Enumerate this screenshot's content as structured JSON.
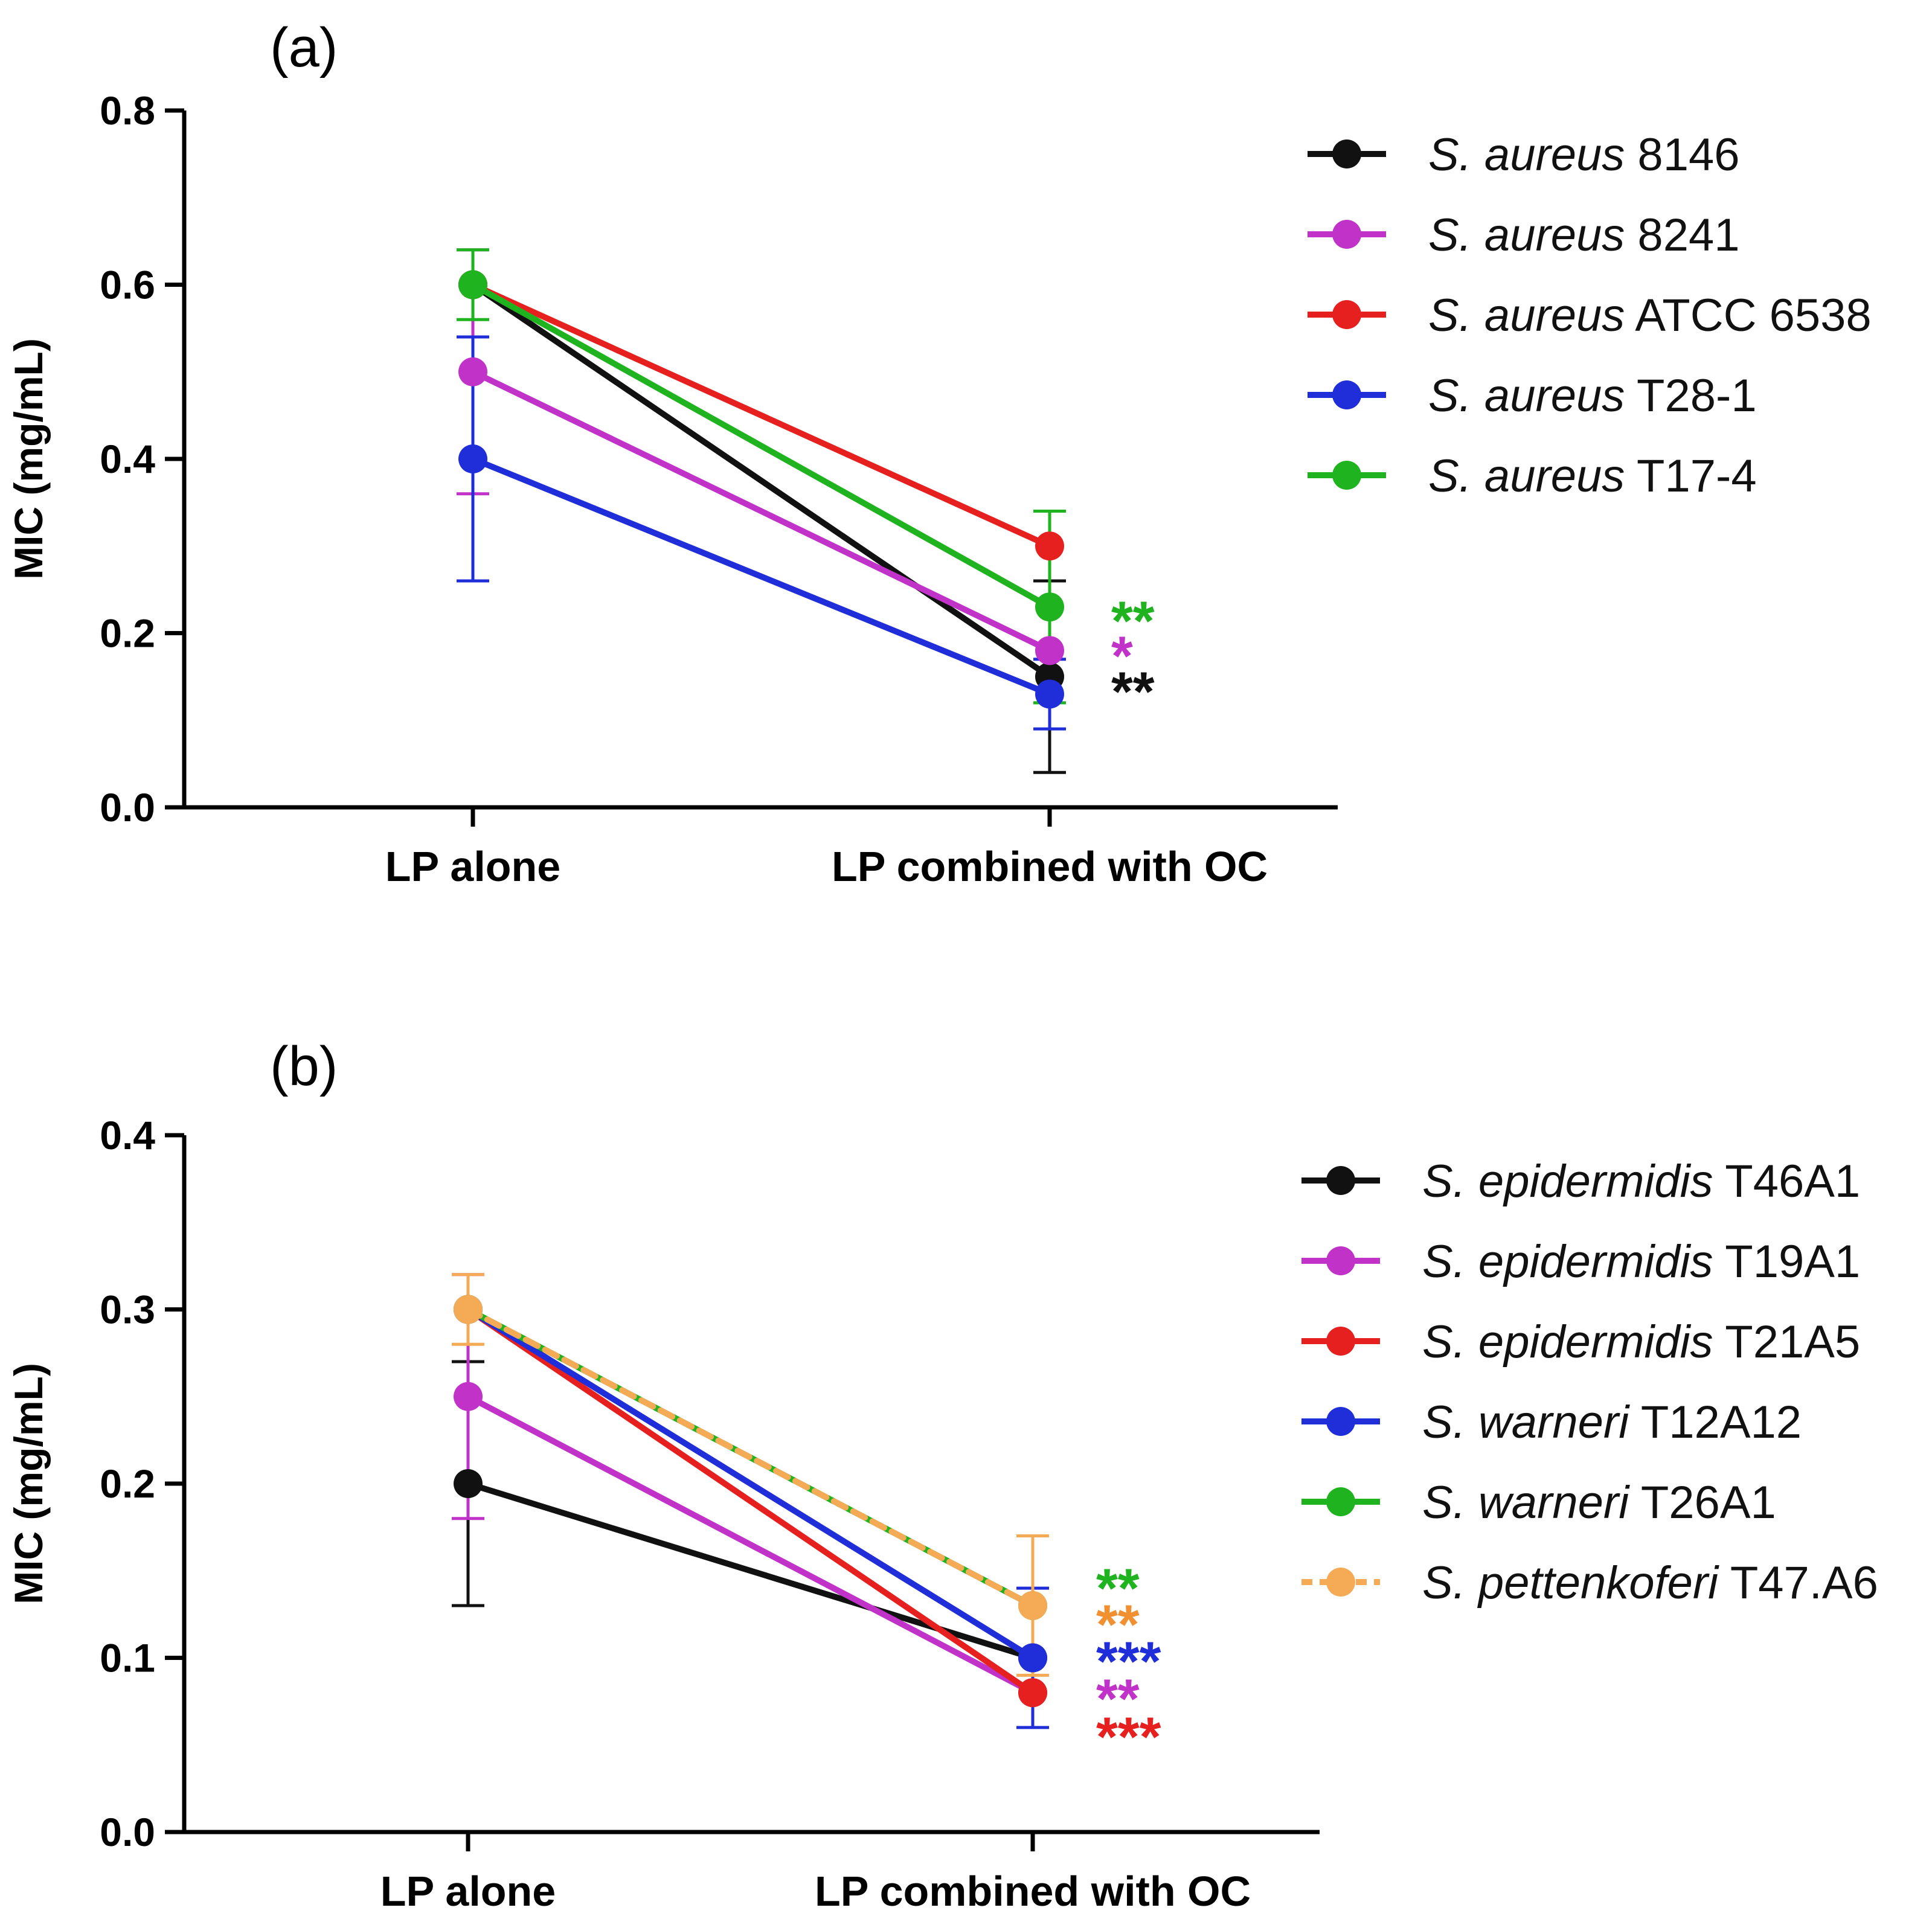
{
  "chart_data": [
    {
      "type": "line",
      "panel_label": "(a)",
      "title": "",
      "xlabel": "",
      "ylabel": "MIC (mg/mL)",
      "categories": [
        "LP alone",
        "LP combined with OC"
      ],
      "ylim": [
        0,
        0.8
      ],
      "yticks": [
        0.0,
        0.2,
        0.4,
        0.6,
        0.8
      ],
      "ytick_labels": [
        "0.0",
        "0.2",
        "0.4",
        "0.6",
        "0.8"
      ],
      "grid": false,
      "legend_position": "right",
      "series": [
        {
          "species": "S. aureus",
          "strain": "8146",
          "color": "#111111",
          "dashed": false,
          "values": [
            0.6,
            0.15
          ],
          "errors": [
            null,
            0.11
          ]
        },
        {
          "species": "S. aureus",
          "strain": "8241",
          "color": "#c032c8",
          "dashed": false,
          "values": [
            0.5,
            0.18
          ],
          "errors": [
            0.14,
            null
          ]
        },
        {
          "species": "S. aureus",
          "strain": "ATCC 6538",
          "color": "#e6201f",
          "dashed": false,
          "values": [
            0.6,
            0.3
          ],
          "errors": [
            null,
            null
          ]
        },
        {
          "species": "S. aureus",
          "strain": "T28-1",
          "color": "#1f2ed8",
          "dashed": false,
          "values": [
            0.4,
            0.13
          ],
          "errors": [
            0.14,
            0.04
          ]
        },
        {
          "species": "S. aureus",
          "strain": "T17-4",
          "color": "#1fb41f",
          "dashed": false,
          "values": [
            0.6,
            0.23
          ],
          "errors": [
            0.04,
            0.11
          ]
        }
      ],
      "significance": [
        {
          "series": "T17-4",
          "text": "**",
          "color": "#1fb41f"
        },
        {
          "series": "8241",
          "text": "*",
          "color": "#c032c8"
        },
        {
          "series": "8146",
          "text": "**",
          "color": "#111111"
        }
      ]
    },
    {
      "type": "line",
      "panel_label": "(b)",
      "title": "",
      "xlabel": "",
      "ylabel": "MIC (mg/mL)",
      "categories": [
        "LP alone",
        "LP combined with OC"
      ],
      "ylim": [
        0,
        0.4
      ],
      "yticks": [
        0.0,
        0.1,
        0.2,
        0.3,
        0.4
      ],
      "ytick_labels": [
        "0.0",
        "0.1",
        "0.2",
        "0.3",
        "0.4"
      ],
      "grid": false,
      "legend_position": "right",
      "series": [
        {
          "species": "S. epidermidis",
          "strain": "T46A1",
          "color": "#111111",
          "dashed": false,
          "values": [
            0.2,
            0.1
          ],
          "errors": [
            0.07,
            null
          ]
        },
        {
          "species": "S. epidermidis",
          "strain": "T19A1",
          "color": "#c032c8",
          "dashed": false,
          "values": [
            0.25,
            0.08
          ],
          "errors": [
            0.07,
            null
          ]
        },
        {
          "species": "S. epidermidis",
          "strain": "T21A5",
          "color": "#e6201f",
          "dashed": false,
          "values": [
            0.3,
            0.08
          ],
          "errors": [
            null,
            null
          ]
        },
        {
          "species": "S. warneri",
          "strain": "T12A12",
          "color": "#1f2ed8",
          "dashed": false,
          "values": [
            0.3,
            0.1
          ],
          "errors": [
            null,
            0.04
          ]
        },
        {
          "species": "S. warneri",
          "strain": "T26A1",
          "color": "#1fb41f",
          "dashed": false,
          "values": [
            0.3,
            0.13
          ],
          "errors": [
            null,
            null
          ]
        },
        {
          "species": "S. pettenkoferi",
          "strain": "T47.A6",
          "color": "#f5aa55",
          "dashed": true,
          "values": [
            0.3,
            0.13
          ],
          "errors": [
            0.02,
            0.04
          ]
        }
      ],
      "significance": [
        {
          "series": "T26A1",
          "text": "**",
          "color": "#1fb41f"
        },
        {
          "series": "T47.A6",
          "text": "**",
          "color": "#f09030"
        },
        {
          "series": "T12A12",
          "text": "***",
          "color": "#1f2ed8"
        },
        {
          "series": "T19A1",
          "text": "**",
          "color": "#c032c8"
        },
        {
          "series": "T21A5",
          "text": "***",
          "color": "#e6201f"
        }
      ]
    }
  ]
}
